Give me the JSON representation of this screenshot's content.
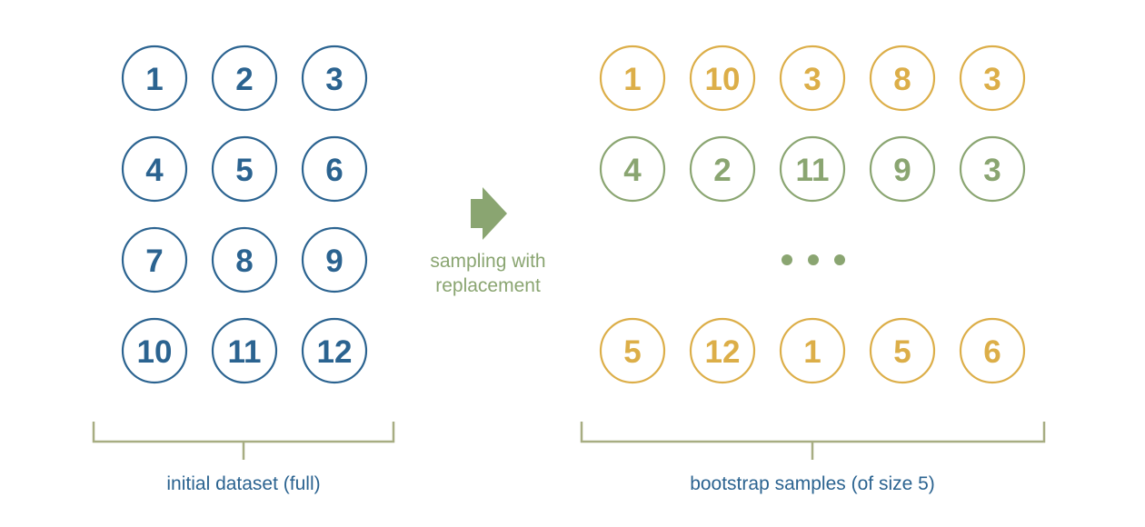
{
  "colors": {
    "initial": "#2b6390",
    "sample_gold": "#dcae48",
    "sample_green": "#8aa571",
    "bracket": "#a7ad82",
    "dots": "#8aa571",
    "arrow": "#8aa571",
    "arrow_text": "#8aa571",
    "caption_left": "#2b6390",
    "caption_right": "#2b6390"
  },
  "initial_dataset": {
    "caption": "initial dataset (full)",
    "rows": [
      [
        "1",
        "2",
        "3"
      ],
      [
        "4",
        "5",
        "6"
      ],
      [
        "7",
        "8",
        "9"
      ],
      [
        "10",
        "11",
        "12"
      ]
    ]
  },
  "arrow": {
    "label_line1": "sampling with",
    "label_line2": "replacement",
    "icon": "right-arrow-icon"
  },
  "bootstrap_samples": {
    "caption": "bootstrap samples (of size 5)",
    "ellipsis_icon": "ellipsis-icon",
    "samples": [
      {
        "color": "sample_gold",
        "values": [
          "1",
          "10",
          "3",
          "8",
          "3"
        ]
      },
      {
        "color": "sample_green",
        "values": [
          "4",
          "2",
          "11",
          "9",
          "3"
        ]
      },
      {
        "color": "sample_gold",
        "values": [
          "5",
          "12",
          "1",
          "5",
          "6"
        ]
      }
    ]
  }
}
